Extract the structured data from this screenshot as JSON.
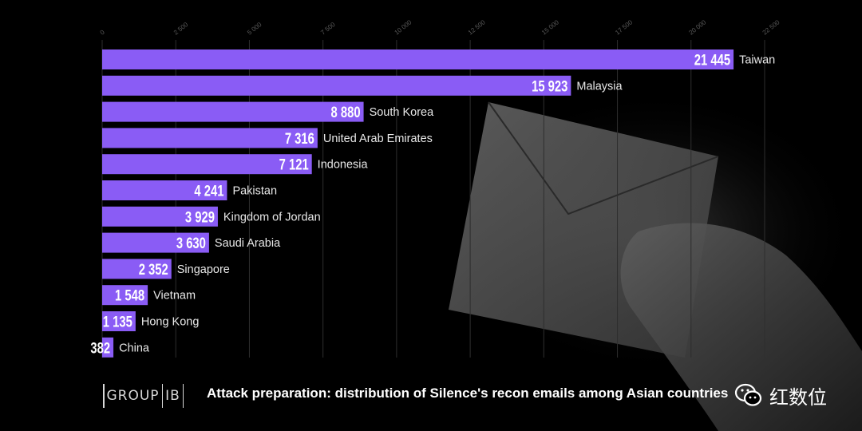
{
  "chart_data": {
    "type": "bar",
    "orientation": "horizontal",
    "categories": [
      "Taiwan",
      "Malaysia",
      "South Korea",
      "United Arab Emirates",
      "Indonesia",
      "Pakistan",
      "Kingdom of Jordan",
      "Saudi Arabia",
      "Singapore",
      "Vietnam",
      "Hong Kong",
      "China"
    ],
    "values": [
      21445,
      15923,
      8880,
      7316,
      7121,
      4241,
      3929,
      3630,
      2352,
      1548,
      1135,
      382
    ],
    "value_labels": [
      "21 445",
      "15 923",
      "8 880",
      "7 316",
      "7 121",
      "4 241",
      "3 929",
      "3 630",
      "2 352",
      "1 548",
      "1 135",
      "382"
    ],
    "x_ticks": [
      0,
      2500,
      5000,
      7500,
      10000,
      12500,
      15000,
      17500,
      20000,
      22500
    ],
    "x_tick_labels": [
      "0",
      "2 500",
      "5 000",
      "7 500",
      "10 000",
      "12 500",
      "15 000",
      "17 500",
      "20 000",
      "22 500"
    ],
    "xlim": [
      0,
      22500
    ],
    "grid": true,
    "bar_color": "#8a5cf5",
    "title": "Attack preparation: distribution of Silence's recon emails among Asian countries"
  },
  "footer": {
    "logo_left": "GROUP",
    "logo_right": "IB",
    "wechat_icon": "wechat-icon",
    "wechat_name": "红数位"
  },
  "colors": {
    "background": "#000000",
    "grid": "#2e2e2e",
    "tick_text": "#5a5a5a",
    "label_text": "#e8e8e8",
    "value_text": "#ffffff"
  }
}
